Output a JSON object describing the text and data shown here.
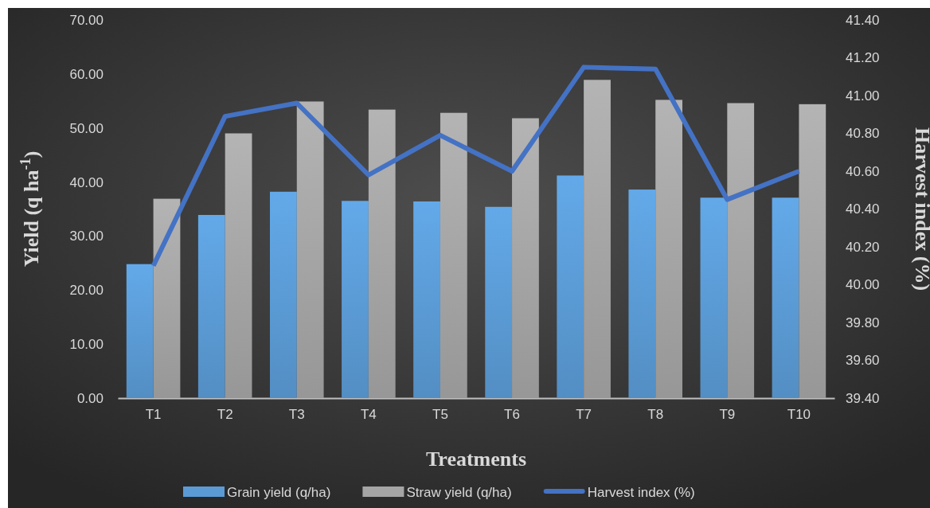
{
  "chart_data": {
    "type": "bar",
    "categories": [
      "T1",
      "T2",
      "T3",
      "T4",
      "T5",
      "T6",
      "T7",
      "T8",
      "T9",
      "T10"
    ],
    "xlabel": "Treatments",
    "ylabel": "Yield (q ha$^{-1}$)",
    "y2label": "Harvest index (%)",
    "ylim": [
      0,
      70
    ],
    "yticks": [
      {
        "value": 0,
        "label": "0.00"
      },
      {
        "value": 10,
        "label": "10.00"
      },
      {
        "value": 20,
        "label": "20.00"
      },
      {
        "value": 30,
        "label": "30.00"
      },
      {
        "value": 40,
        "label": "40.00"
      },
      {
        "value": 50,
        "label": "50.00"
      },
      {
        "value": 60,
        "label": "60.00"
      },
      {
        "value": 70,
        "label": "70.00"
      }
    ],
    "y2lim": [
      39.4,
      41.4
    ],
    "y2ticks": [
      {
        "value": 39.4,
        "label": "39.40"
      },
      {
        "value": 39.6,
        "label": "39.60"
      },
      {
        "value": 39.8,
        "label": "39.80"
      },
      {
        "value": 40.0,
        "label": "40.00"
      },
      {
        "value": 40.2,
        "label": "40.20"
      },
      {
        "value": 40.4,
        "label": "40.40"
      },
      {
        "value": 40.6,
        "label": "40.60"
      },
      {
        "value": 40.8,
        "label": "40.80"
      },
      {
        "value": 41.0,
        "label": "41.00"
      },
      {
        "value": 41.2,
        "label": "41.20"
      },
      {
        "value": 41.4,
        "label": "41.40"
      }
    ],
    "series": [
      {
        "name": "Grain yield (q/ha)",
        "color": "#5b9bd5",
        "values": [
          24.8,
          33.9,
          38.2,
          36.5,
          36.4,
          35.4,
          41.2,
          38.6,
          37.1,
          37.1
        ]
      },
      {
        "name": "Straw yield (q/ha)",
        "color": "#a5a5a5",
        "values": [
          36.9,
          49.0,
          54.9,
          53.4,
          52.8,
          51.8,
          58.9,
          55.2,
          54.6,
          54.4
        ]
      },
      {
        "name": "Harvest index (%)",
        "type": "line",
        "axis": "y2",
        "color": "#4472c4",
        "values": [
          40.1,
          40.89,
          40.96,
          40.58,
          40.79,
          40.6,
          41.15,
          41.14,
          40.45,
          40.6
        ]
      }
    ],
    "grid": false,
    "legend": "bottom",
    "marker": "none",
    "line_style": "solid"
  }
}
